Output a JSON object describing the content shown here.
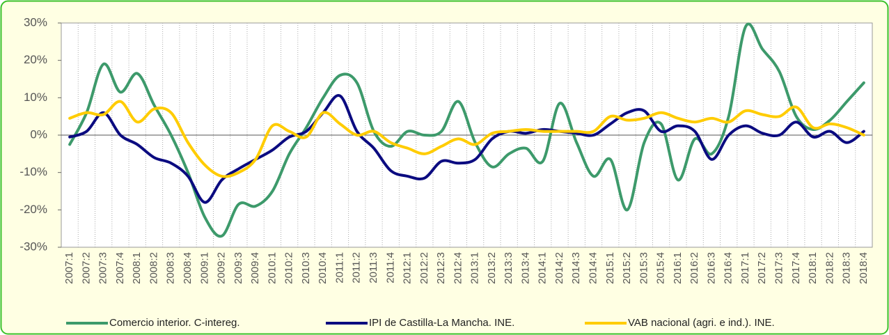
{
  "chart_data": {
    "type": "line",
    "categories": [
      "2007:1",
      "2007:2",
      "2007:3",
      "2007:4",
      "2008:1",
      "2008:2",
      "2008:3",
      "2008:4",
      "2009:1",
      "2009:2",
      "2009:3",
      "2009:4",
      "2010:1",
      "2010:2",
      "2010:3",
      "2010:4",
      "2011:1",
      "2011:2",
      "2011:3",
      "2011:4",
      "2012:1",
      "2012:2",
      "2012:3",
      "2012:4",
      "2013:1",
      "2013:2",
      "2013:3",
      "2013:4",
      "2014:1",
      "2014:2",
      "2014:3",
      "2014:4",
      "2015:1",
      "2015:2",
      "2015:3",
      "2015:4",
      "2016:1",
      "2016:2",
      "2016:3",
      "2016:4",
      "2017:1",
      "2017:2",
      "2017:3",
      "2017:4",
      "2018:1",
      "2018:2",
      "2018:3",
      "2018:4"
    ],
    "series": [
      {
        "name": "Comercio interior. C-intereg.",
        "color": "#3d9a6b",
        "values": [
          -2.5,
          6,
          19,
          11.5,
          16.5,
          8,
          0,
          -10,
          -22,
          -27,
          -18.5,
          -19,
          -15,
          -5,
          2,
          10,
          16,
          14,
          1,
          -3,
          1,
          0,
          1,
          9,
          -2,
          -8.5,
          -5,
          -3.5,
          -7,
          8.5,
          -2,
          -11,
          -6.5,
          -20,
          -2,
          3,
          -12,
          -1,
          -5,
          5,
          29,
          23,
          17,
          5,
          1.5,
          4,
          9,
          14
        ]
      },
      {
        "name": "IPI de Castilla-La Mancha. INE.",
        "color": "#0b0b80",
        "values": [
          -0.5,
          1,
          6,
          0,
          -2.5,
          -6,
          -7.5,
          -11,
          -18,
          -12,
          -9,
          -6.5,
          -4,
          -0.5,
          1,
          6,
          10.5,
          1,
          -3.5,
          -9.5,
          -11,
          -11.5,
          -7,
          -7.5,
          -6.5,
          -1,
          1,
          0.5,
          1.5,
          1,
          0.5,
          0,
          3,
          6,
          6.5,
          1,
          2.5,
          1,
          -6.5,
          0,
          2.5,
          0.5,
          0,
          3.5,
          -0.5,
          1,
          -2,
          1
        ]
      },
      {
        "name": "VAB nacional (agri. e ind.). INE.",
        "color": "#ffcc00",
        "values": [
          4.5,
          6,
          5.5,
          9,
          3.5,
          7,
          6,
          -2,
          -8,
          -11,
          -10,
          -6.5,
          2.5,
          1,
          -0.5,
          6,
          3,
          0,
          1,
          -2,
          -3.5,
          -5,
          -3,
          -1,
          -2.5,
          0.5,
          1,
          1.5,
          1,
          1,
          1,
          1,
          5,
          4,
          4.5,
          6,
          4.5,
          3.5,
          4.5,
          3.5,
          6.5,
          5.5,
          5,
          7.5,
          2,
          3,
          2,
          0
        ]
      }
    ],
    "ylim": [
      -30,
      30
    ],
    "yticks": [
      {
        "value": -30,
        "label": "-30%"
      },
      {
        "value": -20,
        "label": "-20%"
      },
      {
        "value": -10,
        "label": "-10%"
      },
      {
        "value": 0,
        "label": "0%"
      },
      {
        "value": 10,
        "label": "10%"
      },
      {
        "value": 20,
        "label": "20%"
      },
      {
        "value": 30,
        "label": "30%"
      }
    ],
    "legend": "bottom"
  }
}
